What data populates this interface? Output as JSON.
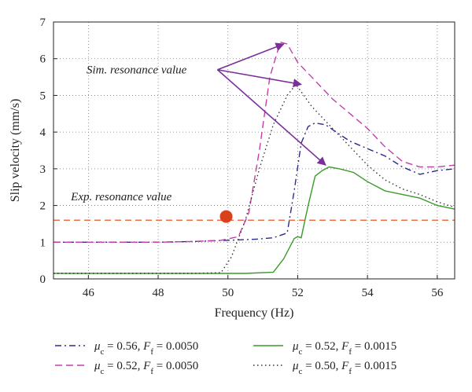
{
  "chart_data": {
    "type": "line",
    "xlabel": "Frequency (Hz)",
    "ylabel": "Slip velocity (mm/s)",
    "xlim": [
      45,
      56.5
    ],
    "ylim": [
      0,
      7
    ],
    "xticks": [
      46,
      48,
      50,
      52,
      54,
      56
    ],
    "yticks": [
      0,
      1,
      2,
      3,
      4,
      5,
      6,
      7
    ],
    "grid": true,
    "grid_style": "dotted",
    "legend_position": "bottom",
    "series": [
      {
        "name": "μc = 0.56, Ff = 0.0050",
        "legend_main": "μ",
        "legend_sub": "c",
        "legend_mid": " = 0.56, ",
        "legend_main2": "F",
        "legend_sub2": "f",
        "legend_end": " = 0.0050",
        "color": "#2b2b8c",
        "style": "dashdot",
        "points": [
          [
            45,
            1.0
          ],
          [
            46,
            1.0
          ],
          [
            47,
            1.0
          ],
          [
            48,
            1.0
          ],
          [
            49,
            1.02
          ],
          [
            50,
            1.05
          ],
          [
            50.8,
            1.08
          ],
          [
            51.3,
            1.12
          ],
          [
            51.7,
            1.25
          ],
          [
            51.9,
            2.4
          ],
          [
            52.1,
            3.7
          ],
          [
            52.3,
            4.15
          ],
          [
            52.5,
            4.25
          ],
          [
            52.8,
            4.2
          ],
          [
            53.1,
            4.0
          ],
          [
            53.5,
            3.75
          ],
          [
            54,
            3.55
          ],
          [
            54.5,
            3.35
          ],
          [
            55,
            3.05
          ],
          [
            55.5,
            2.85
          ],
          [
            56,
            2.95
          ],
          [
            56.5,
            3.0
          ]
        ]
      },
      {
        "name": "μc = 0.52, Ff = 0.0050",
        "legend_main": "μ",
        "legend_sub": "c",
        "legend_mid": " = 0.52, ",
        "legend_main2": "F",
        "legend_sub2": "f",
        "legend_end": " = 0.0050",
        "color": "#c040a8",
        "style": "dashed",
        "points": [
          [
            45,
            1.0
          ],
          [
            46,
            1.0
          ],
          [
            47,
            1.0
          ],
          [
            48,
            1.0
          ],
          [
            49,
            1.02
          ],
          [
            49.8,
            1.05
          ],
          [
            50.3,
            1.15
          ],
          [
            50.6,
            1.8
          ],
          [
            50.9,
            3.5
          ],
          [
            51.2,
            5.5
          ],
          [
            51.5,
            6.45
          ],
          [
            51.7,
            6.4
          ],
          [
            52.0,
            5.9
          ],
          [
            52.5,
            5.4
          ],
          [
            53.0,
            4.9
          ],
          [
            53.5,
            4.5
          ],
          [
            54,
            4.1
          ],
          [
            54.5,
            3.6
          ],
          [
            55,
            3.2
          ],
          [
            55.5,
            3.05
          ],
          [
            56,
            3.05
          ],
          [
            56.5,
            3.1
          ]
        ]
      },
      {
        "name": "μc = 0.52, Ff = 0.0015",
        "legend_main": "μ",
        "legend_sub": "c",
        "legend_mid": " = 0.52, ",
        "legend_main2": "F",
        "legend_sub2": "f",
        "legend_end": " = 0.0015",
        "color": "#3a9a2a",
        "style": "solid",
        "points": [
          [
            45,
            0.15
          ],
          [
            46,
            0.15
          ],
          [
            47,
            0.15
          ],
          [
            48,
            0.15
          ],
          [
            49,
            0.15
          ],
          [
            50,
            0.15
          ],
          [
            50.5,
            0.15
          ],
          [
            51.3,
            0.18
          ],
          [
            51.6,
            0.55
          ],
          [
            51.9,
            1.1
          ],
          [
            52.0,
            1.15
          ],
          [
            52.1,
            1.12
          ],
          [
            52.3,
            2.0
          ],
          [
            52.5,
            2.8
          ],
          [
            52.7,
            2.95
          ],
          [
            52.9,
            3.05
          ],
          [
            53.2,
            3.0
          ],
          [
            53.6,
            2.9
          ],
          [
            54,
            2.65
          ],
          [
            54.5,
            2.4
          ],
          [
            55,
            2.3
          ],
          [
            55.5,
            2.2
          ],
          [
            56,
            2.0
          ],
          [
            56.5,
            1.9
          ]
        ]
      },
      {
        "name": "μc = 0.50, Ff = 0.0015",
        "legend_main": "μ",
        "legend_sub": "c",
        "legend_mid": " = 0.50, ",
        "legend_main2": "F",
        "legend_sub2": "f",
        "legend_end": " = 0.0015",
        "color": "#333333",
        "style": "dotted",
        "points": [
          [
            45,
            0.15
          ],
          [
            46,
            0.15
          ],
          [
            47,
            0.15
          ],
          [
            48,
            0.15
          ],
          [
            49,
            0.15
          ],
          [
            49.8,
            0.17
          ],
          [
            50.1,
            0.6
          ],
          [
            50.5,
            1.6
          ],
          [
            50.9,
            3.0
          ],
          [
            51.3,
            4.2
          ],
          [
            51.7,
            5.0
          ],
          [
            51.95,
            5.3
          ],
          [
            52.1,
            5.1
          ],
          [
            52.4,
            4.7
          ],
          [
            52.9,
            4.2
          ],
          [
            53.5,
            3.6
          ],
          [
            54,
            3.1
          ],
          [
            54.5,
            2.7
          ],
          [
            55,
            2.45
          ],
          [
            55.5,
            2.3
          ],
          [
            56,
            2.1
          ],
          [
            56.5,
            1.95
          ]
        ]
      }
    ],
    "reference_line": {
      "y": 1.6,
      "color": "#e8552a",
      "style": "dashed"
    },
    "exp_point": {
      "x": 49.95,
      "y": 1.7,
      "color": "#d9401c"
    },
    "annotations": [
      {
        "text": "Sim. resonance value",
        "color": "#7b2f9b",
        "anchor": [
          49.7,
          5.7
        ],
        "arrows_to": [
          [
            51.6,
            6.4
          ],
          [
            52.1,
            5.3
          ],
          [
            52.8,
            3.1
          ]
        ]
      },
      {
        "text": "Exp. resonance value",
        "color": "#e06a2a",
        "anchor": [
          45.5,
          2.25
        ]
      }
    ]
  }
}
